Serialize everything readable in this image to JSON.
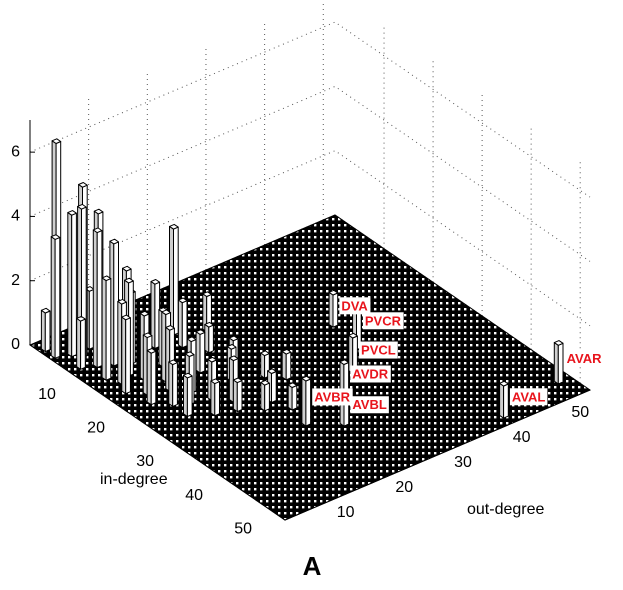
{
  "chart_data": {
    "type": "bar3d",
    "xlabel": "in-degree",
    "ylabel": "out-degree",
    "panel": "A",
    "xlim": [
      0,
      52
    ],
    "ylim": [
      0,
      52
    ],
    "zlim": [
      0,
      7
    ],
    "xticks": [
      10,
      20,
      30,
      40,
      50
    ],
    "yticks": [
      10,
      20,
      30,
      40,
      50
    ],
    "zticks": [
      0,
      2,
      4,
      6
    ],
    "grid": true,
    "in": [
      3,
      4,
      5,
      6,
      7,
      8,
      9,
      10,
      5,
      8,
      12,
      14,
      16,
      13,
      11,
      15,
      18,
      20,
      22,
      17,
      19,
      23,
      25,
      21,
      14,
      24,
      27,
      26,
      10,
      9,
      12,
      18,
      28,
      30,
      22,
      20,
      15,
      24,
      26,
      29,
      32,
      11,
      2,
      4,
      7,
      6,
      3,
      20,
      26,
      30,
      33,
      39,
      36,
      50,
      48
    ],
    "out": [
      2,
      1,
      3,
      4,
      3,
      5,
      4,
      6,
      6,
      2,
      3,
      4,
      3,
      6,
      8,
      7,
      5,
      4,
      6,
      9,
      8,
      8,
      6,
      10,
      11,
      11,
      9,
      13,
      13,
      17,
      16,
      14,
      12,
      15,
      16,
      18,
      18,
      20,
      22,
      17,
      18,
      21,
      1,
      7,
      9,
      12,
      14,
      35,
      34,
      30,
      26,
      21,
      17,
      39,
      50
    ],
    "values": [
      6.5,
      3.7,
      4.4,
      5.3,
      4.8,
      4.6,
      4.2,
      3.8,
      1.8,
      1.5,
      3.1,
      2.5,
      2.3,
      2.9,
      2.2,
      2.0,
      1.8,
      1.6,
      1.3,
      2.1,
      1.9,
      1.5,
      1.2,
      1.6,
      1.7,
      1.2,
      1.0,
      1.3,
      2.0,
      3.3,
      1.4,
      1.2,
      0.9,
      0.8,
      1.0,
      0.9,
      0.8,
      0.7,
      0.8,
      0.9,
      0.7,
      1.1,
      1.2,
      0.9,
      1.4,
      1.0,
      1.6,
      1.0,
      1.4,
      1.1,
      0.9,
      1.0,
      1.4,
      1.0,
      1.2
    ],
    "labels": [
      null,
      null,
      null,
      null,
      null,
      null,
      null,
      null,
      null,
      null,
      null,
      null,
      null,
      null,
      null,
      null,
      null,
      null,
      null,
      null,
      null,
      null,
      null,
      null,
      null,
      null,
      null,
      null,
      null,
      null,
      null,
      null,
      null,
      null,
      null,
      null,
      null,
      null,
      null,
      null,
      null,
      null,
      null,
      null,
      null,
      null,
      null,
      "DVA",
      "PVCR",
      "PVCL",
      "AVDR",
      "AVBL",
      "AVBR",
      "AVAL",
      "AVAR"
    ],
    "bar_color": "#ffffff",
    "floor_color": "#000000",
    "label_color": "#e8141c"
  }
}
